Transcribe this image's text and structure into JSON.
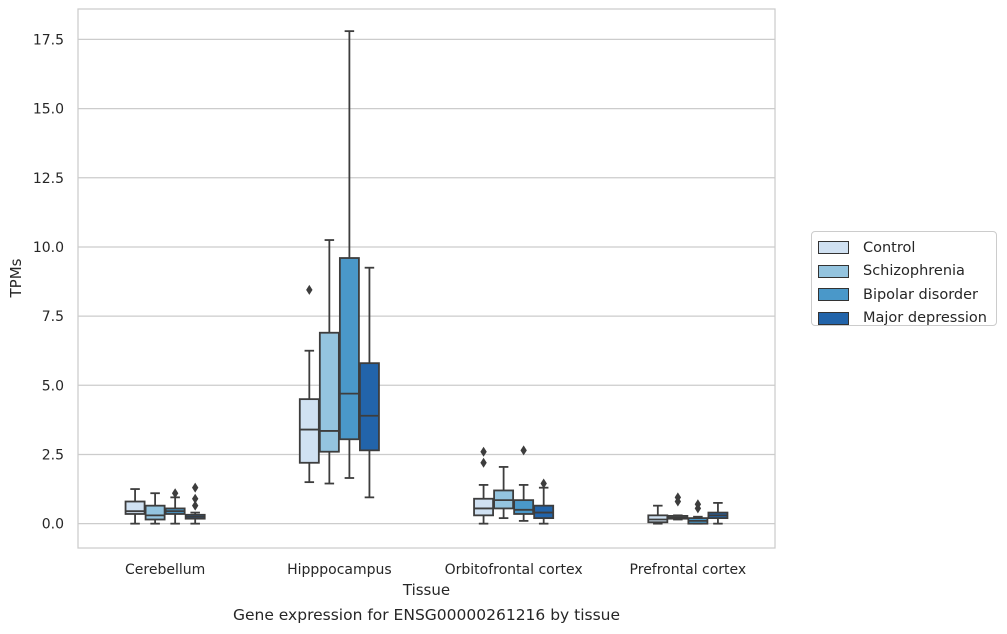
{
  "chart_data": {
    "type": "box",
    "xlabel": "Tissue",
    "ylabel": "TPMs",
    "caption": "Gene expression for ENSG00000261216 by tissue",
    "categories": [
      "Cerebellum",
      "Hipppocampus",
      "Orbitofrontal cortex",
      "Prefrontal cortex"
    ],
    "ylim": [
      -0.88,
      18.6
    ],
    "yticks": [
      0.0,
      2.5,
      5.0,
      7.5,
      10.0,
      12.5,
      15.0,
      17.5
    ],
    "ytick_labels": [
      "0.0",
      "2.5",
      "5.0",
      "7.5",
      "10.0",
      "12.5",
      "15.0",
      "17.5"
    ],
    "grid": "horizontal",
    "legend_position": "right, outside",
    "series": [
      {
        "name": "Control",
        "color": "#d0e1f2",
        "boxes": [
          {
            "whislo": 0.0,
            "q1": 0.35,
            "med": 0.45,
            "q3": 0.8,
            "whishi": 1.25,
            "fliers": []
          },
          {
            "whislo": 1.5,
            "q1": 2.2,
            "med": 3.4,
            "q3": 4.5,
            "whishi": 6.25,
            "fliers": [
              8.45
            ]
          },
          {
            "whislo": 0.0,
            "q1": 0.3,
            "med": 0.55,
            "q3": 0.9,
            "whishi": 1.4,
            "fliers": [
              2.2,
              2.6
            ]
          },
          {
            "whislo": 0.0,
            "q1": 0.05,
            "med": 0.15,
            "q3": 0.3,
            "whishi": 0.65,
            "fliers": []
          }
        ]
      },
      {
        "name": "Schizophrenia",
        "color": "#94c4df",
        "boxes": [
          {
            "whislo": 0.0,
            "q1": 0.15,
            "med": 0.3,
            "q3": 0.65,
            "whishi": 1.1,
            "fliers": []
          },
          {
            "whislo": 1.45,
            "q1": 2.6,
            "med": 3.35,
            "q3": 6.9,
            "whishi": 10.25,
            "fliers": []
          },
          {
            "whislo": 0.2,
            "q1": 0.55,
            "med": 0.85,
            "q3": 1.2,
            "whishi": 2.05,
            "fliers": []
          },
          {
            "whislo": 0.15,
            "q1": 0.18,
            "med": 0.22,
            "q3": 0.28,
            "whishi": 0.3,
            "fliers": [
              0.8,
              0.95
            ]
          }
        ]
      },
      {
        "name": "Bipolar disorder",
        "color": "#4a98c9",
        "boxes": [
          {
            "whislo": 0.0,
            "q1": 0.35,
            "med": 0.45,
            "q3": 0.55,
            "whishi": 0.95,
            "fliers": [
              1.1
            ]
          },
          {
            "whislo": 1.65,
            "q1": 3.05,
            "med": 4.7,
            "q3": 9.6,
            "whishi": 17.8,
            "fliers": []
          },
          {
            "whislo": 0.1,
            "q1": 0.35,
            "med": 0.5,
            "q3": 0.85,
            "whishi": 1.4,
            "fliers": [
              2.65
            ]
          },
          {
            "whislo": 0.0,
            "q1": 0.0,
            "med": 0.1,
            "q3": 0.2,
            "whishi": 0.25,
            "fliers": [
              0.55,
              0.7
            ]
          }
        ]
      },
      {
        "name": "Major depression",
        "color": "#2264aa",
        "boxes": [
          {
            "whislo": 0.0,
            "q1": 0.18,
            "med": 0.25,
            "q3": 0.32,
            "whishi": 0.4,
            "fliers": [
              0.65,
              0.9,
              1.3
            ]
          },
          {
            "whislo": 0.95,
            "q1": 2.65,
            "med": 3.9,
            "q3": 5.8,
            "whishi": 9.25,
            "fliers": []
          },
          {
            "whislo": 0.0,
            "q1": 0.2,
            "med": 0.4,
            "q3": 0.65,
            "whishi": 1.3,
            "fliers": [
              1.45
            ]
          },
          {
            "whislo": 0.0,
            "q1": 0.2,
            "med": 0.3,
            "q3": 0.4,
            "whishi": 0.75,
            "fliers": []
          }
        ]
      }
    ]
  }
}
